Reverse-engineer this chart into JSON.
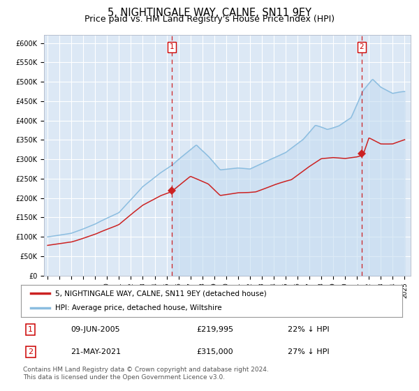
{
  "title": "5, NIGHTINGALE WAY, CALNE, SN11 9EY",
  "subtitle": "Price paid vs. HM Land Registry's House Price Index (HPI)",
  "title_fontsize": 10.5,
  "subtitle_fontsize": 9,
  "ylim": [
    0,
    620000
  ],
  "xlim_start": 1994.7,
  "xlim_end": 2025.5,
  "yticks": [
    0,
    50000,
    100000,
    150000,
    200000,
    250000,
    300000,
    350000,
    400000,
    450000,
    500000,
    550000,
    600000
  ],
  "ytick_labels": [
    "£0",
    "£50K",
    "£100K",
    "£150K",
    "£200K",
    "£250K",
    "£300K",
    "£350K",
    "£400K",
    "£450K",
    "£500K",
    "£550K",
    "£600K"
  ],
  "background_color": "#ffffff",
  "plot_bg_color": "#dce8f5",
  "grid_color": "#ffffff",
  "hpi_line_color": "#8bbde0",
  "price_line_color": "#cc2222",
  "marker_color": "#cc2222",
  "vline_color": "#cc0000",
  "event1_x": 2005.44,
  "event1_y": 219995,
  "event1_label": "1",
  "event2_x": 2021.38,
  "event2_y": 315000,
  "event2_label": "2",
  "legend_price_label": "5, NIGHTINGALE WAY, CALNE, SN11 9EY (detached house)",
  "legend_hpi_label": "HPI: Average price, detached house, Wiltshire",
  "table_row1": [
    "1",
    "09-JUN-2005",
    "£219,995",
    "22% ↓ HPI"
  ],
  "table_row2": [
    "2",
    "21-MAY-2021",
    "£315,000",
    "27% ↓ HPI"
  ],
  "footer": "Contains HM Land Registry data © Crown copyright and database right 2024.\nThis data is licensed under the Open Government Licence v3.0.",
  "font_family": "DejaVu Sans"
}
